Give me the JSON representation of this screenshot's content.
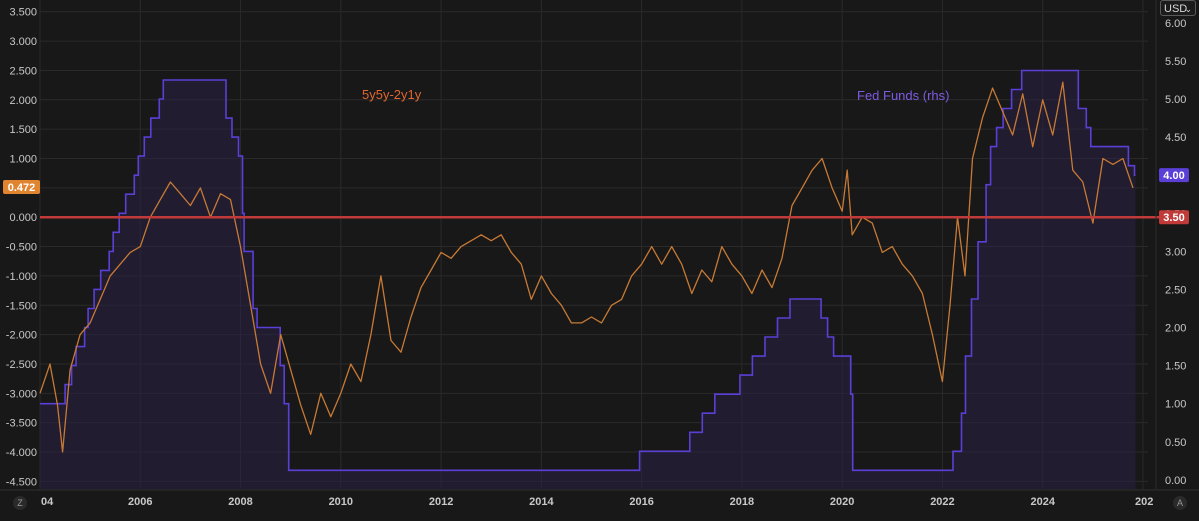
{
  "currency": {
    "label": "USD"
  },
  "corner": {
    "left": "Z",
    "right": "A"
  },
  "colors": {
    "background": "#181818",
    "grid": "#2a2a2a",
    "spread_line": "#c77a35",
    "fed_funds_line": "#5b3fd6",
    "fed_funds_fill": "#2a2145",
    "zero_line": "#c03a3a",
    "spread_badge": "#e0842f",
    "fed_badge": "#5b3fd6",
    "level_badge": "#c03a3a",
    "spread_label": "#e0672f",
    "fed_label": "#7e5be0"
  },
  "chart_data": {
    "type": "line",
    "annotations": [
      "5y5y-2y1y",
      "Fed Funds (rhs)"
    ],
    "x_ticks": [
      "04",
      "2006",
      "2008",
      "2010",
      "2012",
      "2014",
      "2016",
      "2018",
      "2020",
      "2022",
      "2024",
      "202"
    ],
    "x_range": [
      2004.0,
      2026.1
    ],
    "left_axis": {
      "ticks": [
        "3.500",
        "3.000",
        "2.500",
        "2.000",
        "1.500",
        "1.000",
        "0.500",
        "0.000",
        "-0.500",
        "-1.000",
        "-1.500",
        "-2.000",
        "-2.500",
        "-3.000",
        "-3.500",
        "-4.000",
        "-4.500"
      ],
      "range": [
        -4.63,
        3.7
      ]
    },
    "right_axis": {
      "ticks": [
        "6.00",
        "5.50",
        "5.00",
        "4.50",
        "4.00",
        "3.50",
        "3.00",
        "2.50",
        "2.00",
        "1.50",
        "1.00",
        "0.50",
        "0.00"
      ],
      "range": [
        -0.12,
        6.3
      ]
    },
    "badges": {
      "spread_last": "0.472",
      "fed_last": "4.00",
      "level": "3.50"
    },
    "reference_line": {
      "axis": "left",
      "value": 0.0
    },
    "grid": true,
    "series": [
      {
        "name": "5y5y-2y1y",
        "axis": "left",
        "x": [
          2004.0,
          2004.2,
          2004.35,
          2004.45,
          2004.6,
          2004.8,
          2005.0,
          2005.2,
          2005.4,
          2005.6,
          2005.8,
          2006.0,
          2006.2,
          2006.4,
          2006.6,
          2006.8,
          2007.0,
          2007.2,
          2007.4,
          2007.6,
          2007.8,
          2008.0,
          2008.2,
          2008.4,
          2008.6,
          2008.8,
          2009.0,
          2009.2,
          2009.4,
          2009.6,
          2009.8,
          2010.0,
          2010.2,
          2010.4,
          2010.6,
          2010.8,
          2011.0,
          2011.2,
          2011.4,
          2011.6,
          2011.8,
          2012.0,
          2012.2,
          2012.4,
          2012.6,
          2012.8,
          2013.0,
          2013.2,
          2013.4,
          2013.6,
          2013.8,
          2014.0,
          2014.2,
          2014.4,
          2014.6,
          2014.8,
          2015.0,
          2015.2,
          2015.4,
          2015.6,
          2015.8,
          2016.0,
          2016.2,
          2016.4,
          2016.6,
          2016.8,
          2017.0,
          2017.2,
          2017.4,
          2017.6,
          2017.8,
          2018.0,
          2018.2,
          2018.4,
          2018.6,
          2018.8,
          2019.0,
          2019.2,
          2019.4,
          2019.6,
          2019.8,
          2020.0,
          2020.1,
          2020.2,
          2020.4,
          2020.6,
          2020.8,
          2021.0,
          2021.2,
          2021.4,
          2021.6,
          2021.8,
          2022.0,
          2022.15,
          2022.3,
          2022.45,
          2022.6,
          2022.8,
          2023.0,
          2023.2,
          2023.4,
          2023.6,
          2023.8,
          2024.0,
          2024.2,
          2024.4,
          2024.6,
          2024.8,
          2025.0,
          2025.2,
          2025.4,
          2025.6,
          2025.8
        ],
        "values": [
          -3.0,
          -2.5,
          -3.2,
          -4.0,
          -2.6,
          -2.0,
          -1.8,
          -1.4,
          -1.0,
          -0.8,
          -0.6,
          -0.5,
          0.0,
          0.3,
          0.6,
          0.4,
          0.2,
          0.5,
          0.0,
          0.4,
          0.3,
          -0.5,
          -1.5,
          -2.5,
          -3.0,
          -2.0,
          -2.6,
          -3.2,
          -3.7,
          -3.0,
          -3.4,
          -3.0,
          -2.5,
          -2.8,
          -2.0,
          -1.0,
          -2.1,
          -2.3,
          -1.7,
          -1.2,
          -0.9,
          -0.6,
          -0.7,
          -0.5,
          -0.4,
          -0.3,
          -0.4,
          -0.3,
          -0.6,
          -0.8,
          -1.4,
          -1.0,
          -1.3,
          -1.5,
          -1.8,
          -1.8,
          -1.7,
          -1.8,
          -1.5,
          -1.4,
          -1.0,
          -0.8,
          -0.5,
          -0.8,
          -0.5,
          -0.8,
          -1.3,
          -0.9,
          -1.1,
          -0.5,
          -0.8,
          -1.0,
          -1.3,
          -0.9,
          -1.2,
          -0.7,
          0.2,
          0.5,
          0.8,
          1.0,
          0.5,
          0.1,
          0.8,
          -0.3,
          0.0,
          -0.1,
          -0.6,
          -0.5,
          -0.8,
          -1.0,
          -1.3,
          -2.0,
          -2.8,
          -1.5,
          0.0,
          -1.0,
          1.0,
          1.7,
          2.2,
          1.8,
          1.4,
          2.1,
          1.2,
          2.0,
          1.4,
          2.3,
          0.8,
          0.6,
          -0.1,
          1.0,
          0.9,
          1.0,
          0.5
        ]
      },
      {
        "name": "Fed Funds (rhs)",
        "axis": "right",
        "step": true,
        "x": [
          2004.0,
          2004.5,
          2004.63,
          2004.72,
          2004.89,
          2004.96,
          2005.08,
          2005.21,
          2005.38,
          2005.46,
          2005.58,
          2005.71,
          2005.88,
          2005.96,
          2006.08,
          2006.21,
          2006.38,
          2006.46,
          2007.71,
          2007.83,
          2007.96,
          2008.04,
          2008.07,
          2008.25,
          2008.33,
          2008.79,
          2008.87,
          2008.96,
          2015.96,
          2016.96,
          2017.21,
          2017.46,
          2017.96,
          2018.21,
          2018.46,
          2018.71,
          2018.96,
          2019.58,
          2019.71,
          2019.83,
          2020.17,
          2020.21,
          2022.21,
          2022.38,
          2022.46,
          2022.58,
          2022.71,
          2022.87,
          2022.96,
          2023.08,
          2023.21,
          2023.38,
          2023.58,
          2024.71,
          2024.87,
          2024.96,
          2025.71,
          2025.83
        ],
        "values": [
          1.0,
          1.25,
          1.5,
          1.75,
          2.0,
          2.25,
          2.5,
          2.75,
          3.0,
          3.25,
          3.5,
          3.75,
          4.0,
          4.25,
          4.5,
          4.75,
          5.0,
          5.25,
          4.75,
          4.5,
          4.25,
          3.5,
          3.0,
          2.25,
          2.0,
          1.5,
          1.0,
          0.125,
          0.375,
          0.625,
          0.875,
          1.125,
          1.375,
          1.625,
          1.875,
          2.125,
          2.375,
          2.125,
          1.875,
          1.625,
          1.125,
          0.125,
          0.375,
          0.875,
          1.625,
          2.375,
          3.125,
          3.875,
          4.375,
          4.625,
          4.875,
          5.125,
          5.375,
          4.875,
          4.625,
          4.375,
          4.125,
          4.0
        ]
      }
    ]
  }
}
